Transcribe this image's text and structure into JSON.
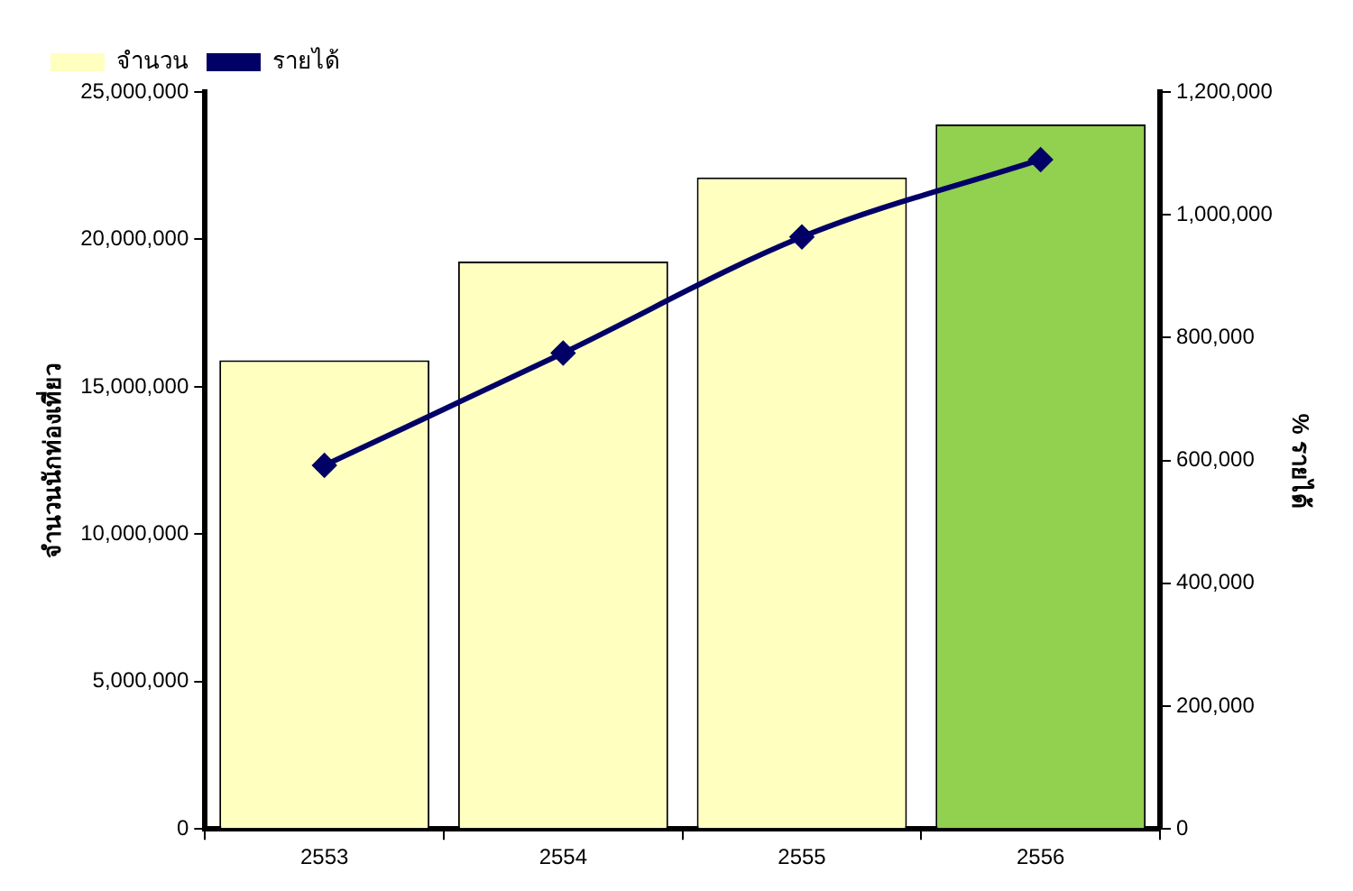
{
  "chart_data": {
    "type": "bar",
    "categories": [
      "2553",
      "2554",
      "2555",
      "2556"
    ],
    "ylabel": "จำนวนนักท่องเที่ยว",
    "y2label": "% รายได้",
    "series": [
      {
        "name": "จำนวน",
        "type": "bar",
        "colors": [
          "#ffffc0",
          "#ffffc0",
          "#ffffc0",
          "#92d050"
        ],
        "color": "#ffffc0",
        "values": [
          15900000,
          19250000,
          22100000,
          23900000
        ]
      },
      {
        "name": "รายได้",
        "type": "line",
        "axis": "y2",
        "color": "#000066",
        "marker": "diamond",
        "values": [
          592000,
          775000,
          964000,
          1090000
        ]
      }
    ],
    "ylim": [
      0,
      25000000
    ],
    "yticks": [
      0,
      {
        "value": 5000000,
        "label": "5,000,000"
      },
      {
        "value": 10000000,
        "label": "10,000,000"
      },
      {
        "value": 15000000,
        "label": "15,000,000"
      },
      {
        "value": 20000000,
        "label": "20,000,000"
      },
      {
        "value": 25000000,
        "label": "25,000,000"
      }
    ],
    "y2lim": [
      0,
      1200000
    ],
    "y2ticks": [
      0,
      {
        "value": 200000,
        "label": "200,000"
      },
      {
        "value": 400000,
        "label": "400,000"
      },
      {
        "value": 600000,
        "label": "600,000"
      },
      {
        "value": 800000,
        "label": "800,000"
      },
      {
        "value": 1000000,
        "label": "1,000,000"
      },
      {
        "value": 1200000,
        "label": "1,200,000"
      }
    ],
    "grid": false,
    "legend": "top left"
  }
}
